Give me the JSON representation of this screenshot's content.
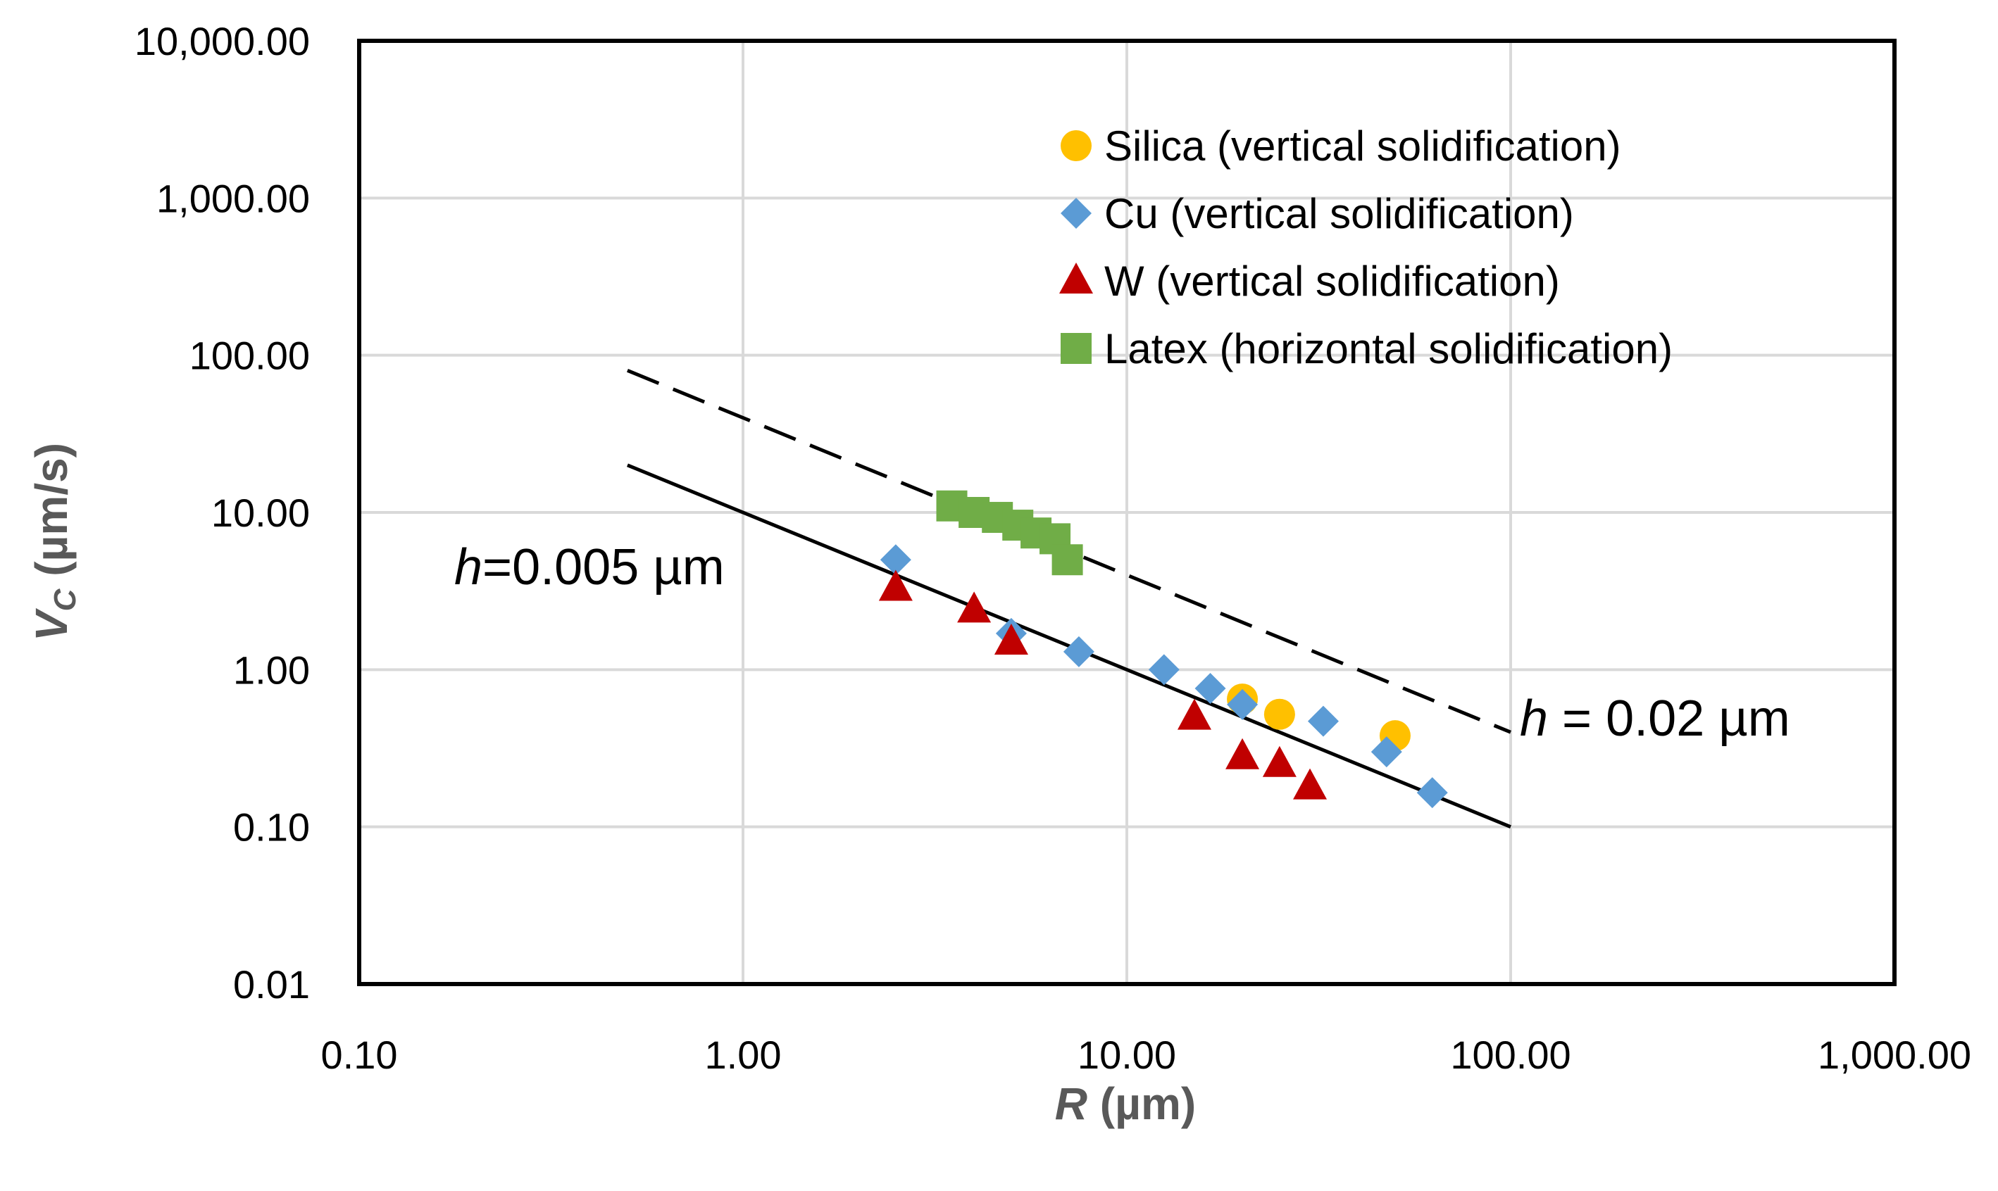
{
  "chart_data": {
    "type": "scatter",
    "title": "",
    "xlabel": {
      "main": "R",
      "unit": " (µm)"
    },
    "ylabel": {
      "main": "V",
      "sub": "C",
      "unit": " (µm/s)"
    },
    "xscale": "log",
    "yscale": "log",
    "xlim": [
      0.1,
      1000
    ],
    "ylim": [
      0.01,
      10000
    ],
    "grid": true,
    "legend_position": "top-right",
    "x_ticks": [
      {
        "value": 0.1,
        "label": "0.10"
      },
      {
        "value": 1,
        "label": "1.00"
      },
      {
        "value": 10,
        "label": "10.00"
      },
      {
        "value": 100,
        "label": "100.00"
      },
      {
        "value": 1000,
        "label": "1,000.00"
      }
    ],
    "y_ticks": [
      {
        "value": 0.01,
        "label": "0.01"
      },
      {
        "value": 0.1,
        "label": "0.10"
      },
      {
        "value": 1,
        "label": "1.00"
      },
      {
        "value": 10,
        "label": "10.00"
      },
      {
        "value": 100,
        "label": "100.00"
      },
      {
        "value": 1000,
        "label": "1,000.00"
      },
      {
        "value": 10000,
        "label": "10,000.00"
      }
    ],
    "series": [
      {
        "name": "Silica (vertical solidification)",
        "marker": "circle",
        "color": "#FFC000",
        "points": [
          [
            20,
            0.65
          ],
          [
            25,
            0.52
          ],
          [
            50,
            0.38
          ]
        ]
      },
      {
        "name": "Cu (vertical solidification)",
        "marker": "diamond",
        "color": "#5B9BD5",
        "points": [
          [
            2.5,
            5.0
          ],
          [
            5.0,
            1.7
          ],
          [
            7.5,
            1.3
          ],
          [
            12.5,
            1.0
          ],
          [
            16.5,
            0.76
          ],
          [
            20,
            0.6
          ],
          [
            32.5,
            0.47
          ],
          [
            47.5,
            0.3
          ],
          [
            62.5,
            0.165
          ]
        ]
      },
      {
        "name": "W (vertical solidification)",
        "marker": "triangle",
        "color": "#C00000",
        "points": [
          [
            2.5,
            3.3
          ],
          [
            4.0,
            2.4
          ],
          [
            5.0,
            1.5
          ],
          [
            15,
            0.5
          ],
          [
            20,
            0.28
          ],
          [
            25,
            0.25
          ],
          [
            30,
            0.18
          ]
        ]
      },
      {
        "name": "Latex (horizontal solidification)",
        "marker": "square",
        "color": "#70AD47",
        "points": [
          [
            3.5,
            11.0
          ],
          [
            4.0,
            10.0
          ],
          [
            4.6,
            9.3
          ],
          [
            5.2,
            8.3
          ],
          [
            5.8,
            7.4
          ],
          [
            6.5,
            6.8
          ],
          [
            7.0,
            5.0
          ]
        ]
      }
    ],
    "lines": [
      {
        "name": "h = 0.005 µm",
        "style": "solid",
        "color": "#000000",
        "x": [
          0.5,
          100
        ],
        "y": [
          20,
          0.1
        ]
      },
      {
        "name": "h = 0.02 µm",
        "style": "dashed",
        "color": "#000000",
        "x": [
          0.5,
          100
        ],
        "y": [
          80,
          0.4
        ]
      }
    ],
    "annotations": [
      {
        "italic": "h",
        "rest": "=0.005 µm"
      },
      {
        "italic": "h",
        "rest": " = 0.02 µm"
      }
    ]
  },
  "colors": {
    "grid": "#D9D9D9",
    "frame": "#000000",
    "axis_title": "#595959"
  }
}
